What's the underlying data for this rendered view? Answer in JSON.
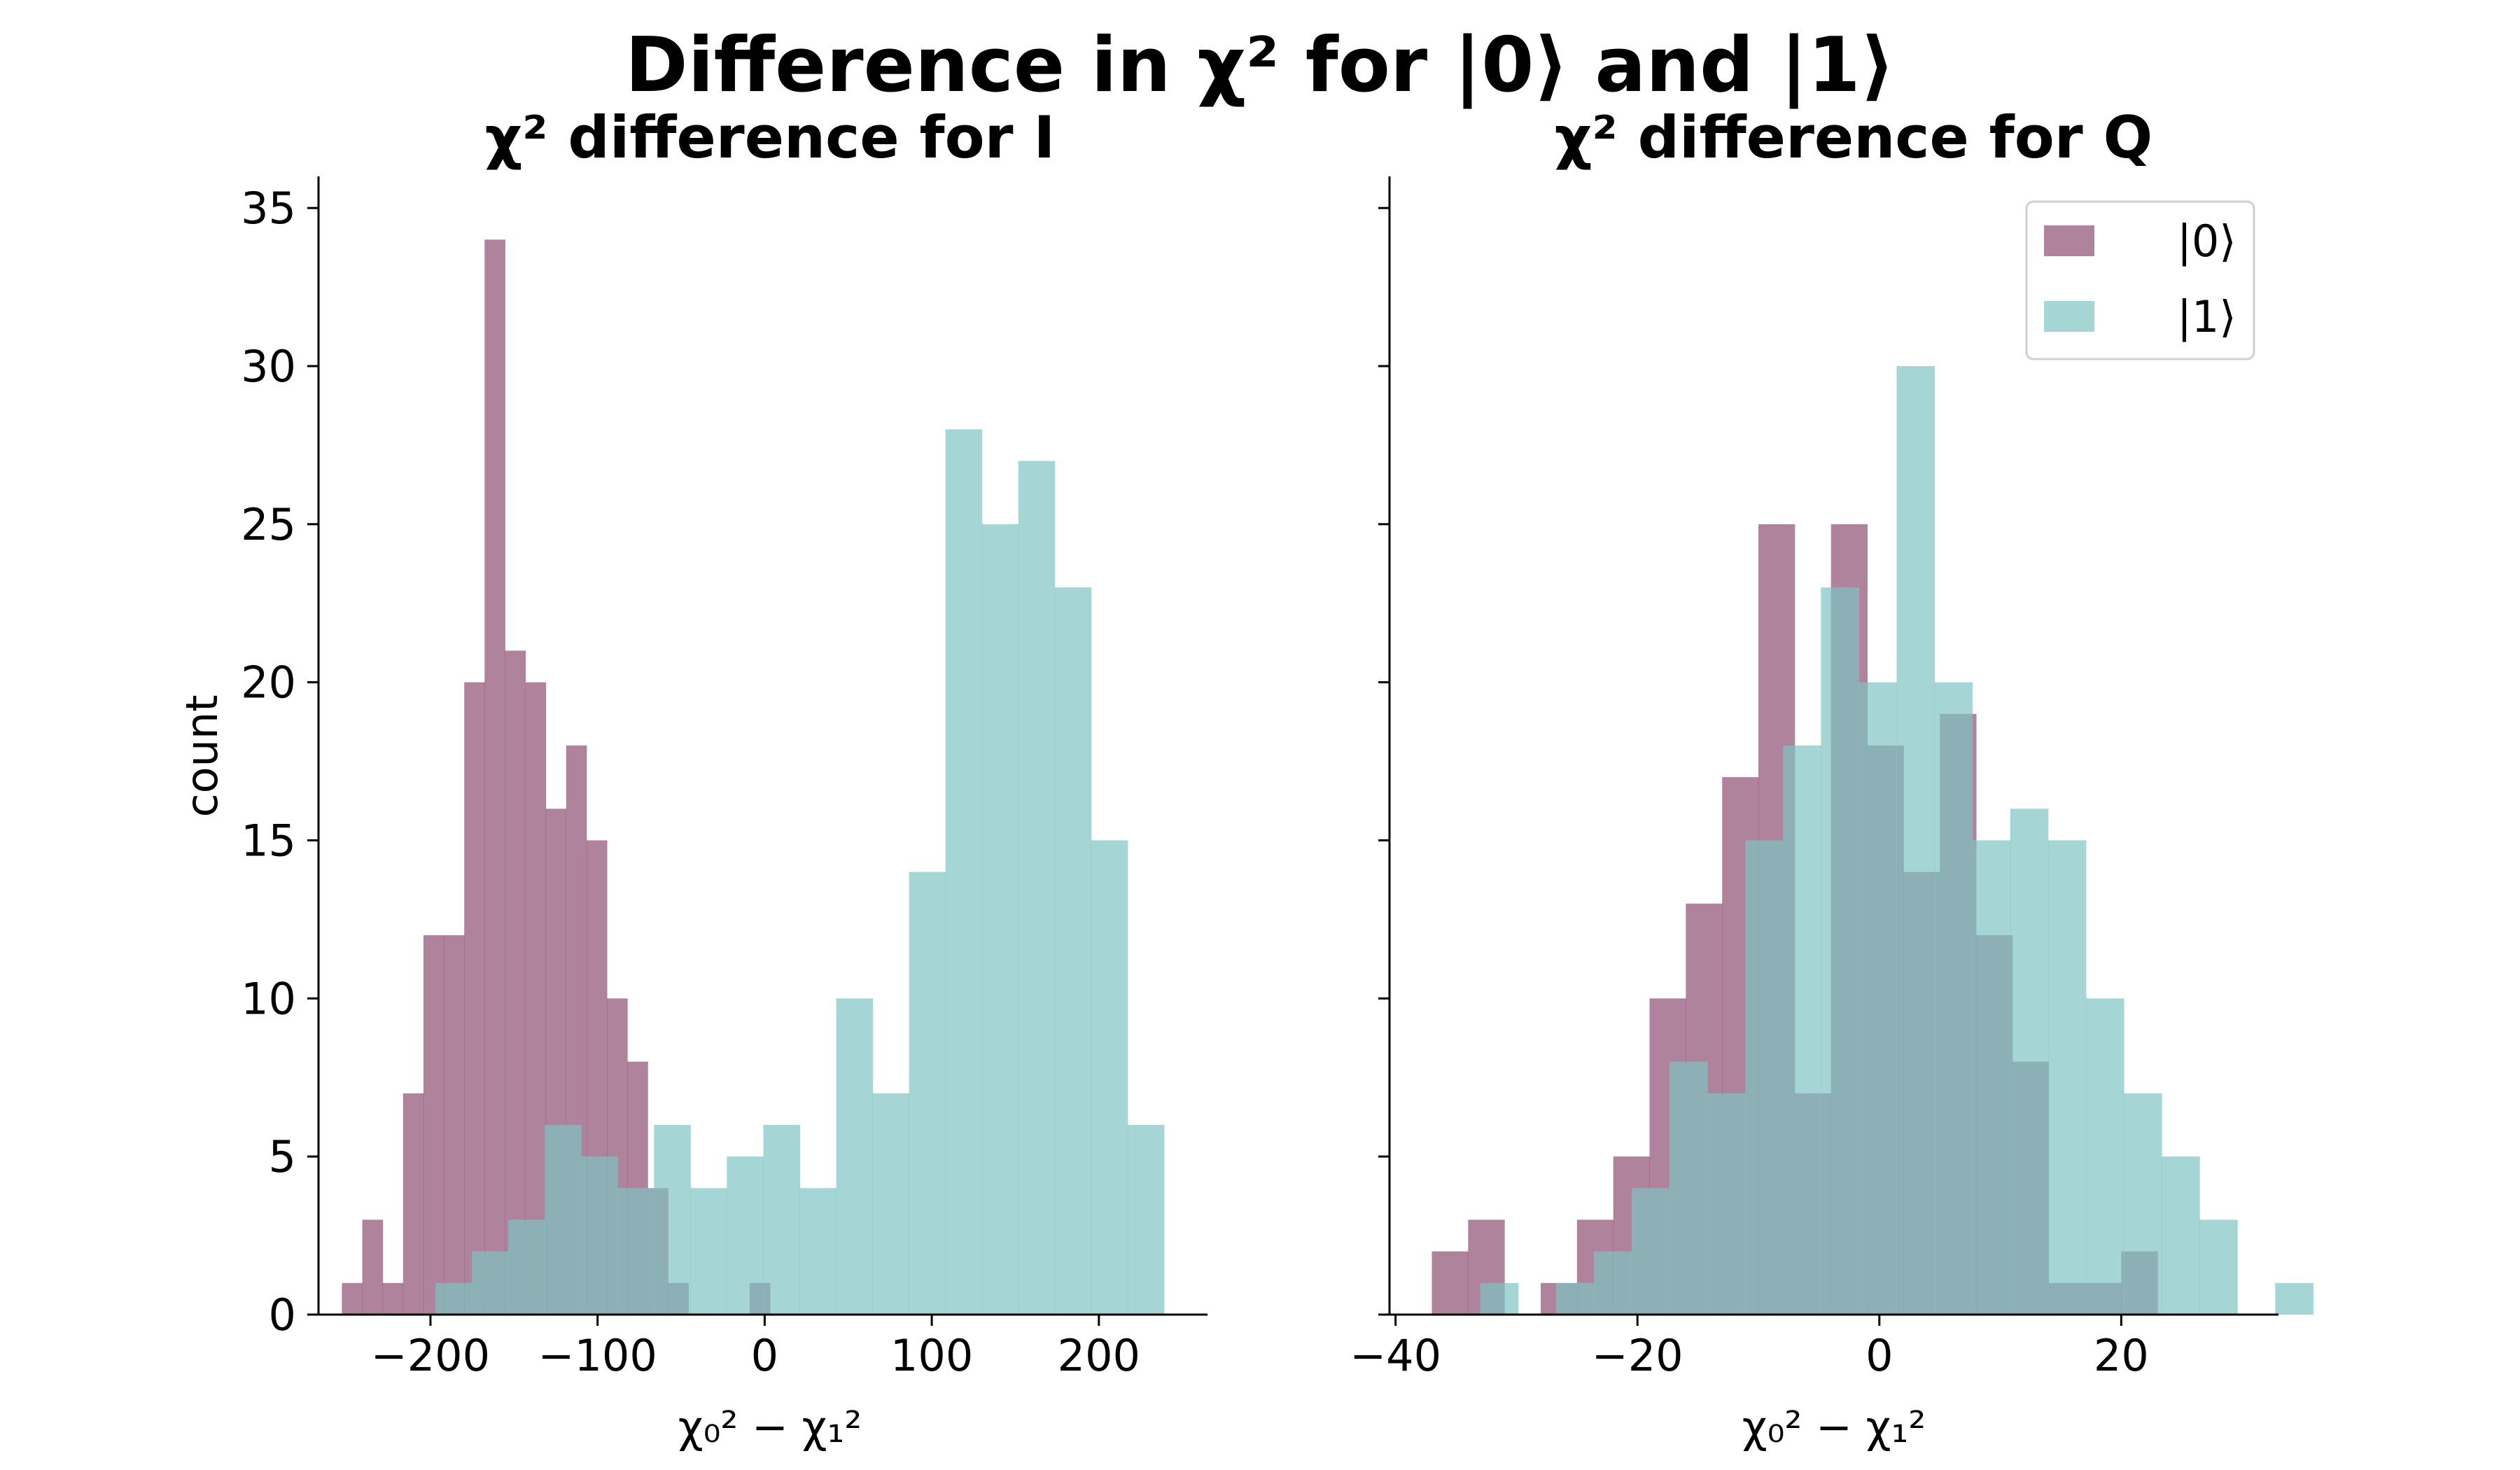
{
  "figure": {
    "title": "Difference in χ² for |0⟩ and |1⟩"
  },
  "colors": {
    "state0": "#8f4f73",
    "state1": "#7fc3c2",
    "overlap": "#7e9aa1",
    "axis": "#000000"
  },
  "chart_data": [
    {
      "type": "histogram",
      "title": "χ² difference for I",
      "xlabel": "χ₀² − χ₁²",
      "ylabel": "count",
      "xlim": [
        -267,
        265
      ],
      "ylim": [
        0,
        36
      ],
      "xticks": [
        -200,
        -100,
        0,
        100,
        200
      ],
      "xtick_labels": [
        "−200",
        "−100",
        "0",
        "100",
        "200"
      ],
      "yticks": [
        0,
        5,
        10,
        15,
        20,
        25,
        30,
        35
      ],
      "ytick_labels": [
        "0",
        "5",
        "10",
        "15",
        "20",
        "25",
        "30",
        "35"
      ],
      "grid": false,
      "series": [
        {
          "name": "|0⟩",
          "color_key": "state0",
          "bin_start": -253,
          "bin_width": 12.2,
          "counts": [
            1,
            3,
            1,
            7,
            12,
            12,
            20,
            34,
            21,
            20,
            16,
            18,
            15,
            10,
            8,
            4,
            1,
            0,
            0,
            0,
            1
          ]
        },
        {
          "name": "|1⟩",
          "color_key": "state1",
          "bin_start": -197,
          "bin_width": 21.8,
          "counts": [
            1,
            2,
            3,
            6,
            5,
            4,
            6,
            4,
            5,
            6,
            4,
            10,
            7,
            14,
            28,
            25,
            27,
            23,
            15,
            6
          ]
        }
      ]
    },
    {
      "type": "histogram",
      "title": "χ² difference for Q",
      "xlabel": "χ₀² − χ₁²",
      "ylabel": "",
      "xlim": [
        -40.5,
        33
      ],
      "ylim": [
        0,
        36
      ],
      "xticks": [
        -40,
        -20,
        0,
        20
      ],
      "xtick_labels": [
        "−40",
        "−20",
        "0",
        "20"
      ],
      "yticks": [
        0,
        5,
        10,
        15,
        20,
        25,
        30,
        35
      ],
      "ytick_labels": [],
      "grid": false,
      "legend": {
        "position": "top-right",
        "entries": [
          "|0⟩",
          "|1⟩"
        ]
      },
      "series": [
        {
          "name": "|0⟩",
          "color_key": "state0",
          "bin_start": -37,
          "bin_width": 3.0,
          "counts": [
            2,
            3,
            0,
            1,
            3,
            5,
            10,
            13,
            17,
            25,
            7,
            25,
            18,
            14,
            19,
            12,
            8,
            1,
            1,
            2
          ]
        },
        {
          "name": "|1⟩",
          "color_key": "state1",
          "bin_start": -33,
          "bin_width": 3.13,
          "counts": [
            1,
            0,
            1,
            2,
            4,
            8,
            7,
            15,
            18,
            23,
            20,
            30,
            20,
            15,
            16,
            15,
            10,
            7,
            5,
            3,
            0,
            1
          ]
        }
      ]
    }
  ]
}
